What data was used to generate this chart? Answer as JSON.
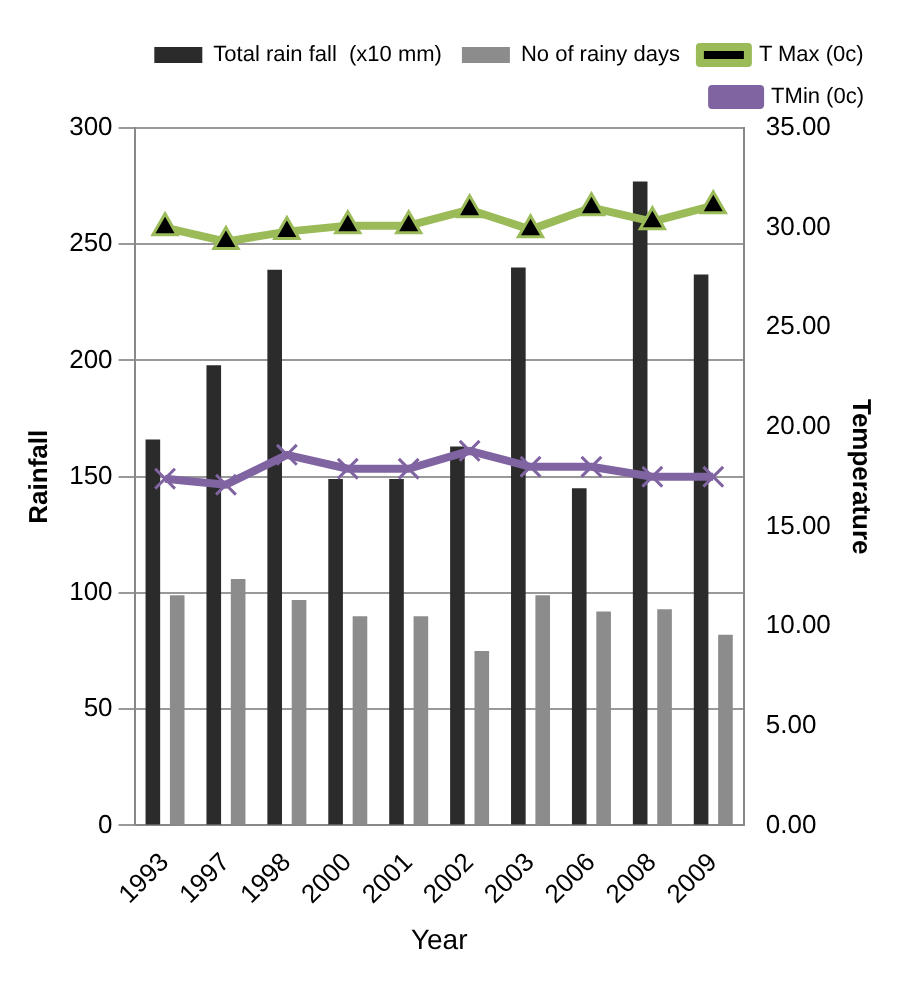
{
  "chart_data": {
    "type": "bar",
    "xlabel": "Year",
    "ylabel": "Rainfall",
    "y2label": "Temperature",
    "categories": [
      "1993",
      "1997",
      "1998",
      "2000",
      "2001",
      "2002",
      "2003",
      "2006",
      "2008",
      "2009"
    ],
    "series": [
      {
        "name": "Total rain fall  (x10 mm)",
        "color": "#2b2b2b",
        "values": [
          166,
          198,
          239,
          149,
          149,
          163,
          240,
          145,
          277,
          237
        ]
      },
      {
        "name": "No of rainy days",
        "color": "#8c8c8c",
        "values": [
          99,
          106,
          97,
          90,
          90,
          75,
          99,
          92,
          93,
          82
        ]
      },
      {
        "name": "T Max (0c)",
        "type": "line",
        "axis": "y2",
        "marker": "triangle",
        "color": "#9bbb59",
        "values": [
          30.0,
          29.3,
          29.8,
          30.1,
          30.1,
          30.9,
          29.9,
          31.0,
          30.3,
          31.1
        ]
      },
      {
        "name": "TMin (0c)",
        "type": "line",
        "axis": "y2",
        "marker": "cross",
        "color": "#8064a2",
        "values": [
          17.4,
          17.1,
          18.6,
          17.9,
          17.9,
          18.8,
          18.0,
          18.0,
          17.5,
          17.5
        ]
      }
    ],
    "ylim": [
      0,
      300
    ],
    "yticks": [
      0,
      50,
      100,
      150,
      200,
      250,
      300
    ],
    "y2lim": [
      0,
      35
    ],
    "y2ticks": [
      {
        "value": 0,
        "label": "0.00"
      },
      {
        "value": 5,
        "label": "5.00"
      },
      {
        "value": 10,
        "label": "10.00"
      },
      {
        "value": 15,
        "label": "15.00"
      },
      {
        "value": 20,
        "label": "20.00"
      },
      {
        "value": 25,
        "label": "25.00"
      },
      {
        "value": 30,
        "label": "30.00"
      },
      {
        "value": 35,
        "label": "35.00"
      }
    ],
    "grid": "y",
    "legend": "top"
  }
}
